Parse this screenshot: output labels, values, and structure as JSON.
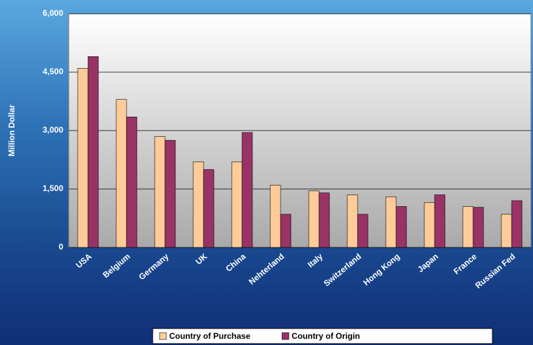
{
  "chart_data": {
    "type": "bar",
    "y_label": "Million Dollar",
    "categories": [
      "USA",
      "Belgium",
      "Germany",
      "UK",
      "China",
      "Nehterland",
      "Italy",
      "Switzerland",
      "Hong Kong",
      "Japan",
      "France",
      "Russian Fed"
    ],
    "series": [
      {
        "name": "Country of Purchase",
        "color": "#ffcc99",
        "values": [
          4600,
          3800,
          2850,
          2200,
          2200,
          1600,
          1450,
          1350,
          1300,
          1150,
          1050,
          850
        ]
      },
      {
        "name": "Country of Origin",
        "color": "#993366",
        "values": [
          4900,
          3350,
          2750,
          2000,
          2950,
          850,
          1400,
          850,
          1050,
          1350,
          1030,
          1200
        ]
      }
    ],
    "ylim": [
      0,
      6000
    ],
    "yticks": [
      0,
      {
        "value": 1500,
        "label": "1,500"
      },
      {
        "value": 3000,
        "label": "3,000"
      },
      {
        "value": 4500,
        "label": "4,500"
      },
      {
        "value": 6000,
        "label": "6,000"
      }
    ],
    "grid": true
  }
}
